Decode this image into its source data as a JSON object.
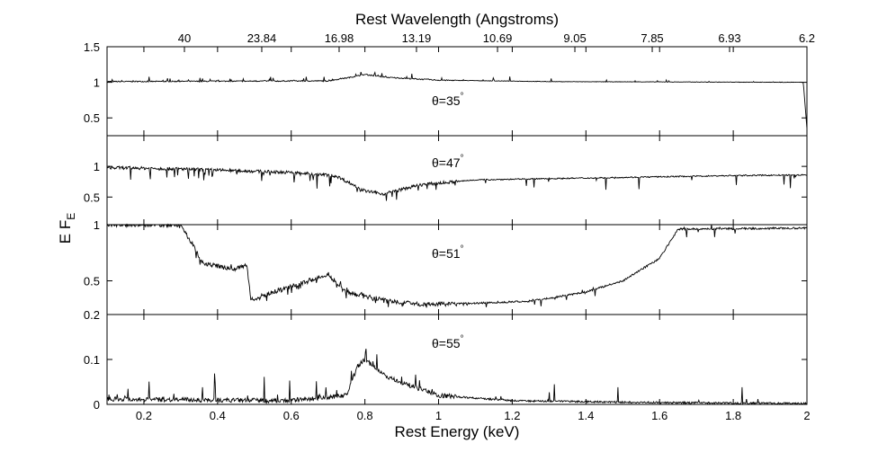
{
  "chart_data": {
    "type": "line",
    "xlabel": "Rest Energy (keV)",
    "x2label": "Rest Wavelength (Angstroms)",
    "ylabel": "E F",
    "ylabel_sub": "E",
    "xlim": [
      0.1,
      2.0
    ],
    "x_ticks": [
      0.2,
      0.4,
      0.6,
      0.8,
      1,
      1.2,
      1.4,
      1.6,
      1.8,
      2
    ],
    "x_tick_labels": [
      "0.2",
      "0.4",
      "0.6",
      "0.8",
      "1",
      "1.2",
      "1.4",
      "1.6",
      "1.8",
      "2"
    ],
    "x2_ticks_energy": [
      0.31,
      0.52,
      0.73,
      0.94,
      1.16,
      1.37,
      1.58,
      1.79,
      2.0
    ],
    "x2_tick_labels": [
      "40",
      "23.84",
      "16.98",
      "13.19",
      "10.69",
      "9.05",
      "7.85",
      "6.93",
      "6.2"
    ],
    "panels": [
      {
        "label": "θ=35",
        "label_sup": "°",
        "ylim": [
          0.25,
          1.5
        ],
        "yticks": [
          0.5,
          1,
          1.5
        ],
        "ytick_labels": [
          "0.5",
          "1",
          "1.5"
        ],
        "profile": {
          "baseline": [
            [
              0.1,
              1.01
            ],
            [
              0.7,
              1.02
            ],
            [
              0.76,
              1.07
            ],
            [
              0.8,
              1.11
            ],
            [
              0.86,
              1.07
            ],
            [
              1.0,
              1.03
            ],
            [
              1.3,
              1.01
            ],
            [
              1.99,
              1.0
            ],
            [
              2.0,
              0.35
            ]
          ],
          "emission_amp": 0.08,
          "absorption_amp": 0.0,
          "noise": 0.015
        }
      },
      {
        "label": "θ=47",
        "label_sup": "°",
        "ylim": [
          0.05,
          1.5
        ],
        "yticks": [
          0.5,
          1
        ],
        "ytick_labels": [
          "0.5",
          "1"
        ],
        "profile": {
          "baseline": [
            [
              0.1,
              0.98
            ],
            [
              0.3,
              0.96
            ],
            [
              0.6,
              0.9
            ],
            [
              0.72,
              0.85
            ],
            [
              0.8,
              0.6
            ],
            [
              0.85,
              0.55
            ],
            [
              0.95,
              0.7
            ],
            [
              1.1,
              0.78
            ],
            [
              1.3,
              0.8
            ],
            [
              1.6,
              0.83
            ],
            [
              1.8,
              0.85
            ],
            [
              2.0,
              0.86
            ]
          ],
          "emission_amp": 0.0,
          "absorption_amp": 0.3,
          "noise": 0.05
        }
      },
      {
        "label": "θ=51",
        "label_sup": "°",
        "ylim": [
          0.2,
          1.0
        ],
        "yticks": [
          0.2,
          0.5,
          1
        ],
        "ytick_labels": [
          "0.2",
          "0.5",
          "1"
        ],
        "profile": {
          "baseline": [
            [
              0.1,
              1.0
            ],
            [
              0.3,
              1.0
            ],
            [
              0.36,
              0.66
            ],
            [
              0.44,
              0.6
            ],
            [
              0.48,
              0.64
            ],
            [
              0.49,
              0.33
            ],
            [
              0.55,
              0.4
            ],
            [
              0.65,
              0.5
            ],
            [
              0.7,
              0.56
            ],
            [
              0.75,
              0.4
            ],
            [
              0.85,
              0.33
            ],
            [
              0.95,
              0.29
            ],
            [
              1.1,
              0.3
            ],
            [
              1.25,
              0.32
            ],
            [
              1.4,
              0.4
            ],
            [
              1.5,
              0.5
            ],
            [
              1.6,
              0.7
            ],
            [
              1.65,
              0.96
            ],
            [
              2.0,
              0.97
            ]
          ],
          "emission_amp": 0.05,
          "absorption_amp": 0.08,
          "noise": 0.04
        }
      },
      {
        "label": "θ=55",
        "label_sup": "°",
        "ylim": [
          0.0,
          0.2
        ],
        "yticks": [
          0,
          0.1
        ],
        "ytick_labels": [
          "0",
          "0.1"
        ],
        "profile": {
          "baseline": [
            [
              0.1,
              0.012
            ],
            [
              0.6,
              0.008
            ],
            [
              0.75,
              0.02
            ],
            [
              0.78,
              0.085
            ],
            [
              0.8,
              0.1
            ],
            [
              0.86,
              0.06
            ],
            [
              1.0,
              0.02
            ],
            [
              1.2,
              0.008
            ],
            [
              1.6,
              0.004
            ],
            [
              2.0,
              0.002
            ]
          ],
          "emission_amp": 0.06,
          "absorption_amp": 0.0,
          "noise": 0.01
        }
      }
    ]
  }
}
